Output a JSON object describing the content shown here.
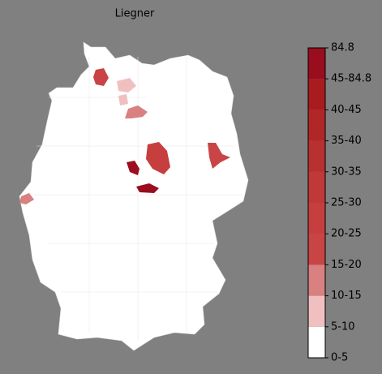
{
  "title": "Liegner",
  "legend": {
    "labels": [
      "0-5",
      "5-10",
      "10-15",
      "15-20",
      "20-25",
      "25-30",
      "30-35",
      "35-40",
      "40-45",
      "45-84.8",
      "84.8"
    ],
    "colors": [
      "#ffffff",
      "#f0c0c0",
      "#d98080",
      "#c94444",
      "#c63e3e",
      "#c03838",
      "#b93030",
      "#b12727",
      "#a81c1f",
      "#9a0d1f"
    ]
  }
}
